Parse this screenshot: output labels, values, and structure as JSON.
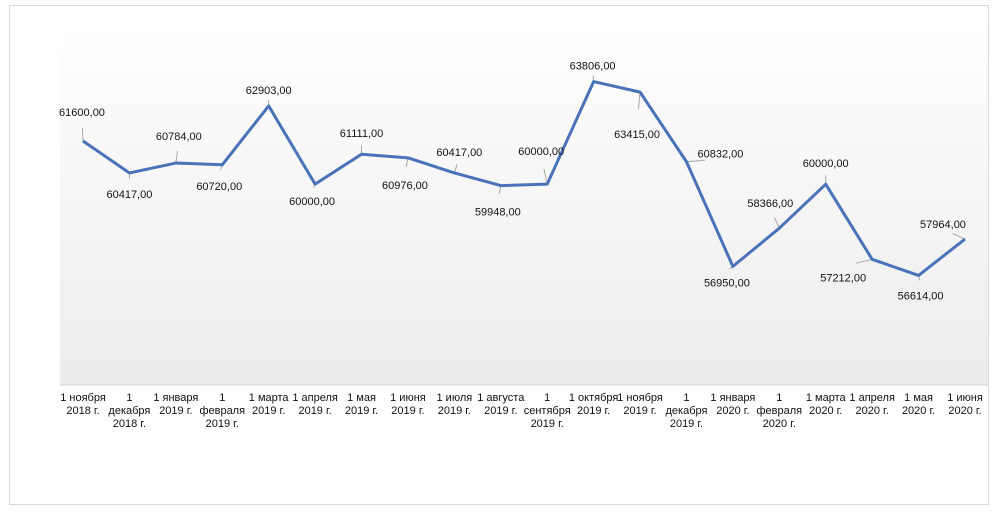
{
  "chart_data": {
    "type": "line",
    "title": "",
    "xlabel": "",
    "ylabel": "",
    "ylim": [
      52550,
      66090
    ],
    "grid": false,
    "legend": "none",
    "line_color": "#4a72b8",
    "categories": [
      "1 ноября 2018 г.",
      "1 декабря 2018 г.",
      "1 января 2019 г.",
      "1 февраля 2019 г.",
      "1 марта 2019 г.",
      "1 апреля 2019 г.",
      "1 мая 2019 г.",
      "1 июня 2019 г.",
      "1 июля 2019 г.",
      "1 августа 2019 г.",
      "1 сентября 2019 г.",
      "1 октября 2019 г.",
      "1 ноября 2019 г.",
      "1 декабря 2019 г.",
      "1 января 2020 г.",
      "1 февраля 2020 г.",
      "1 марта 2020 г.",
      "1 апреля 2020 г.",
      "1 мая 2020 г.",
      "1 июня 2020 г."
    ],
    "values": [
      61600,
      60417,
      60784,
      60720,
      62903,
      60000,
      61111,
      60976,
      60417,
      59948,
      60000,
      63806,
      63415,
      60832,
      56950,
      58366,
      60000,
      57212,
      56614,
      57964
    ],
    "data_labels": [
      "61600,00",
      "60417,00",
      "60784,00",
      "60720,00",
      "62903,00",
      "60000,00",
      "61111,00",
      "60976,00",
      "60417,00",
      "59948,00",
      "60000,00",
      "63806,00",
      "63415,00",
      "60832,00",
      "56950,00",
      "58366,00",
      "60000,00",
      "57212,00",
      "56614,00",
      "57964,00"
    ]
  }
}
